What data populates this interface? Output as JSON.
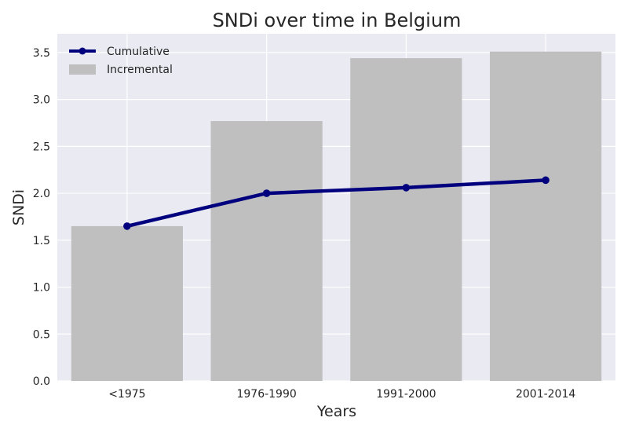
{
  "chart_data": {
    "type": "bar",
    "title": "SNDi over time in Belgium",
    "xlabel": "Years",
    "ylabel": "SNDi",
    "categories": [
      "<1975",
      "1976-1990",
      "1991-2000",
      "2001-2014"
    ],
    "ylim": [
      0,
      3.7
    ],
    "yticks": [
      0.0,
      0.5,
      1.0,
      1.5,
      2.0,
      2.5,
      3.0,
      3.5
    ],
    "ytick_labels": [
      "0.0",
      "0.5",
      "1.0",
      "1.5",
      "2.0",
      "2.5",
      "3.0",
      "3.5"
    ],
    "grid": true,
    "legend_position": "top-left",
    "series": [
      {
        "name": "Cumulative",
        "kind": "line",
        "color": "#00007f",
        "values": [
          1.65,
          2.0,
          2.06,
          2.14
        ]
      },
      {
        "name": "Incremental",
        "kind": "bar",
        "color": "#bfbfbf",
        "values": [
          1.65,
          2.77,
          3.44,
          3.51
        ]
      }
    ],
    "background_color": "#eaeaf2"
  }
}
